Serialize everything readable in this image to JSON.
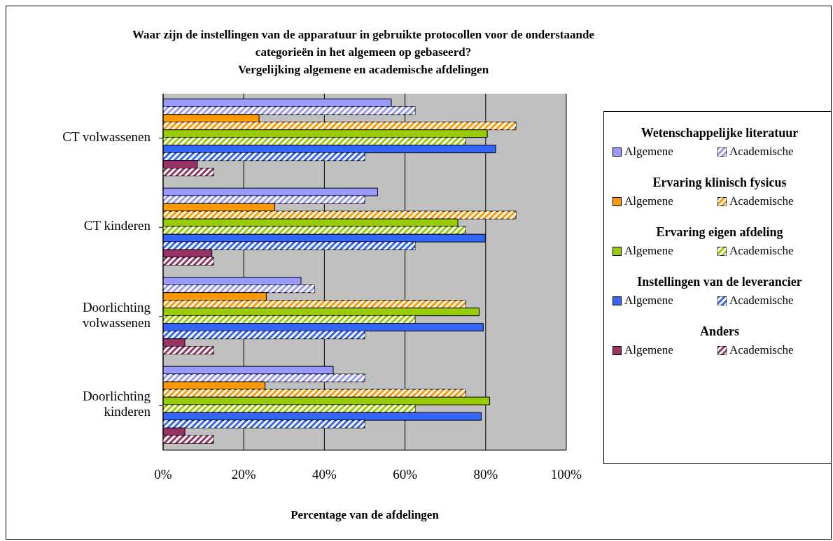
{
  "chart_data": {
    "type": "bar",
    "orientation": "horizontal",
    "title": "Waar zijn de instellingen van de apparatuur in gebruikte protocollen voor de onderstaande categorieën in het algemeen op gebaseerd?",
    "subtitle": "Vergelijking algemene en academische afdelingen",
    "xlabel": "Percentage van de afdelingen",
    "categories": [
      "CT volwassenen",
      "CT kinderen",
      "Doorlichting volwassenen",
      "Doorlichting kinderen"
    ],
    "series": [
      {
        "name": "Algemene",
        "color": "#9999ff",
        "values": [
          56.6,
          53.2,
          34.2,
          42.2
        ]
      },
      {
        "name": "Academische",
        "color": "#9999ff",
        "values": [
          62.5,
          50,
          37.5,
          50
        ]
      },
      {
        "name": "Algemene",
        "color": "#ff9900",
        "values": [
          23.8,
          27.7,
          25.6,
          25.3
        ]
      },
      {
        "name": "Academische",
        "color": "#ff9900",
        "values": [
          87.5,
          87.5,
          75,
          75
        ]
      },
      {
        "name": "Algemene",
        "color": "#99cc00",
        "values": [
          80.4,
          73.1,
          78.4,
          81
        ]
      },
      {
        "name": "Academische",
        "color": "#99cc00",
        "values": [
          75,
          75,
          62.5,
          62.5
        ]
      },
      {
        "name": "Algemene",
        "color": "#3366ff",
        "values": [
          82.5,
          79.9,
          79.4,
          78.9
        ]
      },
      {
        "name": "Academische",
        "color": "#3366ff",
        "values": [
          50,
          62.5,
          50,
          50
        ]
      },
      {
        "name": "Algemene",
        "color": "#993366",
        "values": [
          8.5,
          12.1,
          5.4,
          5.4
        ]
      },
      {
        "name": "Academische",
        "color": "#993366",
        "values": [
          12.5,
          12.5,
          12.5,
          12.5
        ]
      }
    ],
    "annotations": [
      "Wetenschappelijke literatuur",
      "Ervaring klinisch fysicus",
      "Ervaring eigen afdeling",
      "Instellingen van de leverancier",
      "Anders"
    ],
    "xlim": [
      0,
      100
    ],
    "xticks": [
      {
        "value": 0,
        "label": "0%"
      },
      {
        "value": 20,
        "label": "20%"
      },
      {
        "value": 40,
        "label": "40%"
      },
      {
        "value": 60,
        "label": "60%"
      },
      {
        "value": 80,
        "label": "80%"
      },
      {
        "value": 100,
        "label": "100%"
      }
    ],
    "grid": "x",
    "legend": "right"
  }
}
